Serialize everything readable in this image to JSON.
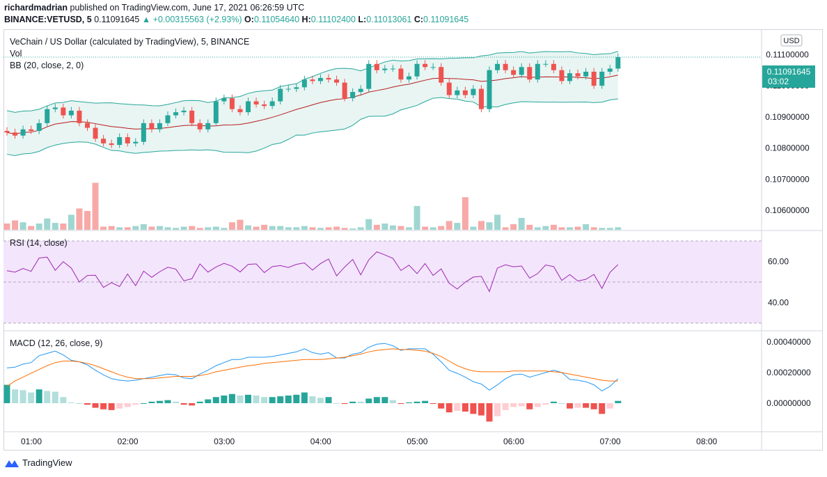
{
  "header": {
    "publisher": "richardmadrian",
    "published_text": "published on TradingView.com, June 17, 2021 06:26:59 UTC",
    "symbol": "BINANCE:VETUSD, 5",
    "last": "0.11091645",
    "change": "+0.00315563 (+2.93%)",
    "o_label": "O:",
    "o": "0.11054640",
    "h_label": "H:",
    "h": "0.11102400",
    "l_label": "L:",
    "l": "0.11013061",
    "c_label": "C:",
    "c": "0.11091645"
  },
  "legend": {
    "title": "VeChain / US Dollar (calculated by TradingView), 5, BINANCE",
    "vol": "Vol",
    "bb": "BB (20, close, 2, 0)",
    "rsi": "RSI (14, close)",
    "macd": "MACD (12, 26, close, 9)"
  },
  "price_axis": {
    "currency": "USD",
    "ticks": [
      "0.10600000",
      "0.10700000",
      "0.10800000",
      "0.10900000",
      "0.11000000"
    ],
    "top_partial": "0.11100000",
    "last_price": "0.11091645",
    "countdown": "03:02"
  },
  "rsi_axis": {
    "ticks": [
      "60.00",
      "40.00"
    ]
  },
  "macd_axis": {
    "ticks": [
      "0.00040000",
      "0.00020000",
      "0.00000000"
    ]
  },
  "time_axis": {
    "ticks": [
      "01:00",
      "02:00",
      "03:00",
      "04:00",
      "05:00",
      "06:00",
      "07:00",
      "08:00"
    ]
  },
  "footer": {
    "brand": "TradingView"
  },
  "colors": {
    "up": "#26a69a",
    "down": "#ef5350",
    "bb_fill": "#e8f5f3",
    "rsi_fill": "#f3e5fb",
    "rsi_line": "#9c27b0",
    "macd": "#2196f3",
    "signal": "#ff6d00"
  },
  "chart_data": {
    "type": "candlestick",
    "interval": "5m",
    "start_time": "00:45",
    "ylim": [
      0.1056,
      0.1115
    ],
    "open": [
      0.10855,
      0.1085,
      0.1084,
      0.1086,
      0.10855,
      0.1088,
      0.10925,
      0.1093,
      0.10905,
      0.1092,
      0.1088,
      0.10865,
      0.1083,
      0.10815,
      0.1081,
      0.10835,
      0.10815,
      0.1082,
      0.1088,
      0.1086,
      0.1088,
      0.10905,
      0.10915,
      0.1092,
      0.1088,
      0.1086,
      0.1088,
      0.1095,
      0.1096,
      0.10925,
      0.10915,
      0.1095,
      0.1094,
      0.10935,
      0.1095,
      0.1099,
      0.1099,
      0.10995,
      0.1102,
      0.11015,
      0.11025,
      0.1102,
      0.1101,
      0.1096,
      0.1098,
      0.1099,
      0.1107,
      0.1105,
      0.11055,
      0.11055,
      0.1102,
      0.1103,
      0.1107,
      0.1106,
      0.1106,
      0.1101,
      0.1097,
      0.10985,
      0.1097,
      0.1099,
      0.10925,
      0.1105,
      0.1107,
      0.1105,
      0.11035,
      0.1106,
      0.1102,
      0.1107,
      0.1107,
      0.1105,
      0.11015,
      0.1104,
      0.1103,
      0.11045,
      0.11,
      0.11045,
      0.11055
    ],
    "close": [
      0.1085,
      0.1084,
      0.1086,
      0.10855,
      0.1088,
      0.10925,
      0.1093,
      0.10905,
      0.1092,
      0.1088,
      0.10865,
      0.1083,
      0.10815,
      0.1081,
      0.10835,
      0.10815,
      0.1082,
      0.1088,
      0.1086,
      0.1088,
      0.10905,
      0.10915,
      0.1092,
      0.1088,
      0.1086,
      0.1088,
      0.1095,
      0.1096,
      0.10925,
      0.10915,
      0.1095,
      0.1094,
      0.10935,
      0.1095,
      0.1099,
      0.1099,
      0.10995,
      0.1102,
      0.11015,
      0.11025,
      0.1102,
      0.1101,
      0.1096,
      0.1098,
      0.1099,
      0.1107,
      0.1105,
      0.11055,
      0.11055,
      0.1102,
      0.1103,
      0.1107,
      0.1106,
      0.1106,
      0.1101,
      0.1097,
      0.10985,
      0.1097,
      0.1099,
      0.10925,
      0.1105,
      0.1107,
      0.1105,
      0.11035,
      0.1106,
      0.1102,
      0.1107,
      0.1107,
      0.1105,
      0.11015,
      0.1104,
      0.1103,
      0.11045,
      0.11,
      0.11045,
      0.11055,
      0.11092
    ],
    "volume": [
      1.0,
      1.5,
      1.2,
      0.6,
      1.0,
      1.8,
      1.1,
      1.0,
      2.4,
      3.4,
      3.0,
      7.5,
      0.5,
      0.6,
      0.4,
      0.4,
      0.6,
      0.9,
      0.5,
      0.6,
      0.4,
      0.3,
      0.5,
      0.6,
      0.3,
      0.4,
      0.5,
      0.3,
      1.2,
      1.6,
      0.7,
      0.5,
      0.8,
      0.6,
      0.6,
      0.4,
      0.4,
      0.6,
      0.4,
      0.3,
      0.4,
      0.5,
      0.3,
      0.2,
      0.4,
      1.7,
      0.8,
      1.0,
      0.7,
      0.6,
      0.4,
      3.8,
      0.5,
      0.4,
      0.6,
      1.4,
      1.1,
      5.2,
      0.5,
      1.4,
      1.2,
      2.4,
      0.4,
      0.9,
      1.9,
      0.8,
      0.4,
      0.6,
      0.8,
      0.4,
      0.4,
      0.5,
      0.9,
      0.4,
      0.3,
      0.3,
      0.4
    ],
    "rsi": [
      55.5,
      54.8,
      56.6,
      55.2,
      61.7,
      62.1,
      55.7,
      59.9,
      56.8,
      50.0,
      53.2,
      53.3,
      47.4,
      49.7,
      47.8,
      53.9,
      48.2,
      55.3,
      52.3,
      55.0,
      57.2,
      56.3,
      50.6,
      51.6,
      58.8,
      54.8,
      57.3,
      59.1,
      57.7,
      54.9,
      58.6,
      58.8,
      54.6,
      57.5,
      58.0,
      57.1,
      58.6,
      59.3,
      55.8,
      59.0,
      61.2,
      53.0,
      57.3,
      61.0,
      53.5,
      60.8,
      64.7,
      63.2,
      61.5,
      55.6,
      58.2,
      54.1,
      59.0,
      53.2,
      56.4,
      49.4,
      46.6,
      49.9,
      52.4,
      52.8,
      45.4,
      56.8,
      58.4,
      57.4,
      57.8,
      51.9,
      54.1,
      58.3,
      57.5,
      50.8,
      53.6,
      50.5,
      51.3,
      53.7,
      46.9,
      54.7,
      58.5
    ],
    "macd": [
      0.00023,
      0.000235,
      0.000255,
      0.000265,
      0.00031,
      0.000325,
      0.00034,
      0.000315,
      0.00028,
      0.00027,
      0.00025,
      0.000215,
      0.000185,
      0.00016,
      0.00015,
      0.000145,
      0.00015,
      0.00016,
      0.00017,
      0.00018,
      0.00019,
      0.000185,
      0.000165,
      0.00016,
      0.00019,
      0.000215,
      0.000245,
      0.000265,
      0.000285,
      0.000285,
      0.0003,
      0.0003,
      0.0003,
      0.000305,
      0.000315,
      0.000325,
      0.000335,
      0.000355,
      0.00033,
      0.00032,
      0.00033,
      0.000295,
      0.000295,
      0.00032,
      0.00033,
      0.000365,
      0.000385,
      0.00039,
      0.000375,
      0.000345,
      0.000355,
      0.000355,
      0.000355,
      0.00032,
      0.00027,
      0.000215,
      0.000195,
      0.00017,
      0.00014,
      0.000125,
      8.5e-05,
      0.00012,
      0.00016,
      0.000185,
      0.00019,
      0.00017,
      0.000185,
      0.0002,
      0.000215,
      0.0002,
      0.000155,
      0.00015,
      0.00014,
      0.00012,
      8e-05,
      0.00011,
      0.00016
    ],
    "signal": [
      0.00011,
      0.000145,
      0.00017,
      0.000195,
      0.00022,
      0.000245,
      0.000265,
      0.000275,
      0.000275,
      0.00027,
      0.00026,
      0.000245,
      0.000225,
      0.000205,
      0.000185,
      0.00017,
      0.00016,
      0.00016,
      0.00016,
      0.000165,
      0.00017,
      0.000175,
      0.000175,
      0.000175,
      0.00018,
      0.00019,
      0.000205,
      0.000215,
      0.000225,
      0.000235,
      0.000245,
      0.00025,
      0.00026,
      0.000265,
      0.00027,
      0.000275,
      0.00028,
      0.000285,
      0.000285,
      0.000285,
      0.00029,
      0.000295,
      0.0003,
      0.00031,
      0.00032,
      0.000335,
      0.000345,
      0.00035,
      0.000355,
      0.00035,
      0.00035,
      0.000345,
      0.00034,
      0.000325,
      0.000305,
      0.000275,
      0.000245,
      0.000225,
      0.00021,
      0.000205,
      0.000205,
      0.000205,
      0.000205,
      0.00021,
      0.00021,
      0.00021,
      0.00021,
      0.00021,
      0.000205,
      0.0002,
      0.00019,
      0.00018,
      0.00017,
      0.00016,
      0.00015,
      0.000145,
      0.000145
    ]
  }
}
